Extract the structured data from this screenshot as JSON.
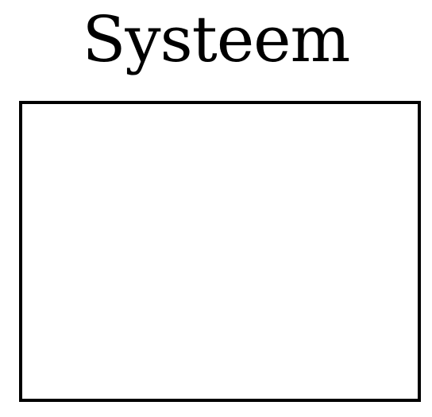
{
  "diagram": {
    "title": "Systeem",
    "colors": {
      "stroke": "#000000",
      "background": "#ffffff"
    }
  }
}
